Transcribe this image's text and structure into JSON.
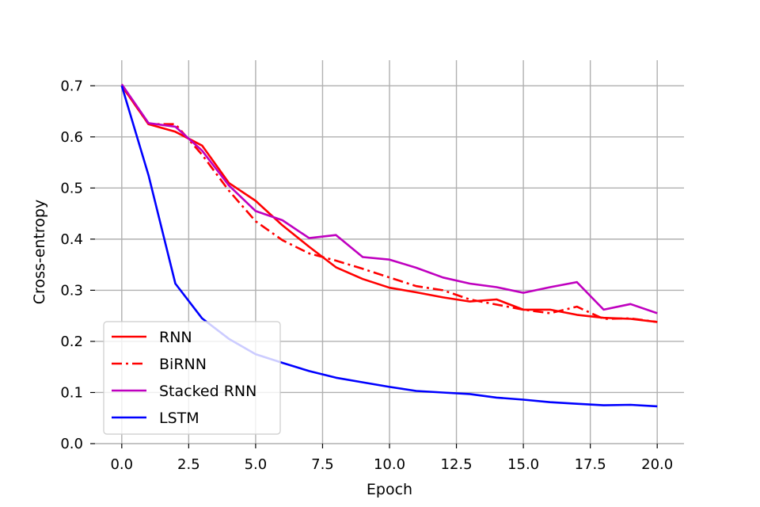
{
  "chart_data": {
    "type": "line",
    "title": "",
    "xlabel": "Epoch",
    "ylabel": "Cross-entropy",
    "xlim": [
      -1,
      21
    ],
    "ylim": [
      0,
      0.75
    ],
    "xticks": [
      0.0,
      2.5,
      5.0,
      7.5,
      10.0,
      12.5,
      15.0,
      17.5,
      20.0
    ],
    "xtick_labels": [
      "0.0",
      "2.5",
      "5.0",
      "7.5",
      "10.0",
      "12.5",
      "15.0",
      "17.5",
      "20.0"
    ],
    "yticks": [
      0.0,
      0.1,
      0.2,
      0.3,
      0.4,
      0.5,
      0.6,
      0.7
    ],
    "ytick_labels": [
      "0.0",
      "0.1",
      "0.2",
      "0.3",
      "0.4",
      "0.5",
      "0.6",
      "0.7"
    ],
    "grid": true,
    "legend_position": "lower-left",
    "x": [
      0,
      1,
      2,
      3,
      4,
      5,
      6,
      7,
      8,
      9,
      10,
      11,
      12,
      13,
      14,
      15,
      16,
      17,
      18,
      19,
      20
    ],
    "series": [
      {
        "name": "RNN",
        "color": "#ff0000",
        "linestyle": "solid",
        "values": [
          0.7,
          0.625,
          0.61,
          0.583,
          0.51,
          0.475,
          0.427,
          0.385,
          0.345,
          0.322,
          0.305,
          0.296,
          0.286,
          0.278,
          0.282,
          0.262,
          0.262,
          0.252,
          0.246,
          0.244,
          0.238
        ]
      },
      {
        "name": "BiRNN",
        "color": "#ff0000",
        "linestyle": "dashdot",
        "values": [
          0.7,
          0.625,
          0.625,
          0.565,
          0.495,
          0.435,
          0.398,
          0.372,
          0.358,
          0.342,
          0.325,
          0.308,
          0.3,
          0.282,
          0.272,
          0.262,
          0.255,
          0.268,
          0.244,
          0.245,
          0.238
        ]
      },
      {
        "name": "Stacked RNN",
        "color": "#bf00bf",
        "linestyle": "solid",
        "values": [
          0.703,
          0.627,
          0.62,
          0.573,
          0.505,
          0.455,
          0.437,
          0.402,
          0.408,
          0.365,
          0.36,
          0.344,
          0.325,
          0.313,
          0.306,
          0.295,
          0.306,
          0.316,
          0.262,
          0.273,
          0.255
        ]
      },
      {
        "name": "LSTM",
        "color": "#0000ff",
        "linestyle": "solid",
        "values": [
          0.7,
          0.525,
          0.313,
          0.245,
          0.205,
          0.175,
          0.158,
          0.142,
          0.129,
          0.12,
          0.111,
          0.103,
          0.1,
          0.097,
          0.09,
          0.086,
          0.081,
          0.078,
          0.075,
          0.076,
          0.073
        ]
      }
    ]
  }
}
